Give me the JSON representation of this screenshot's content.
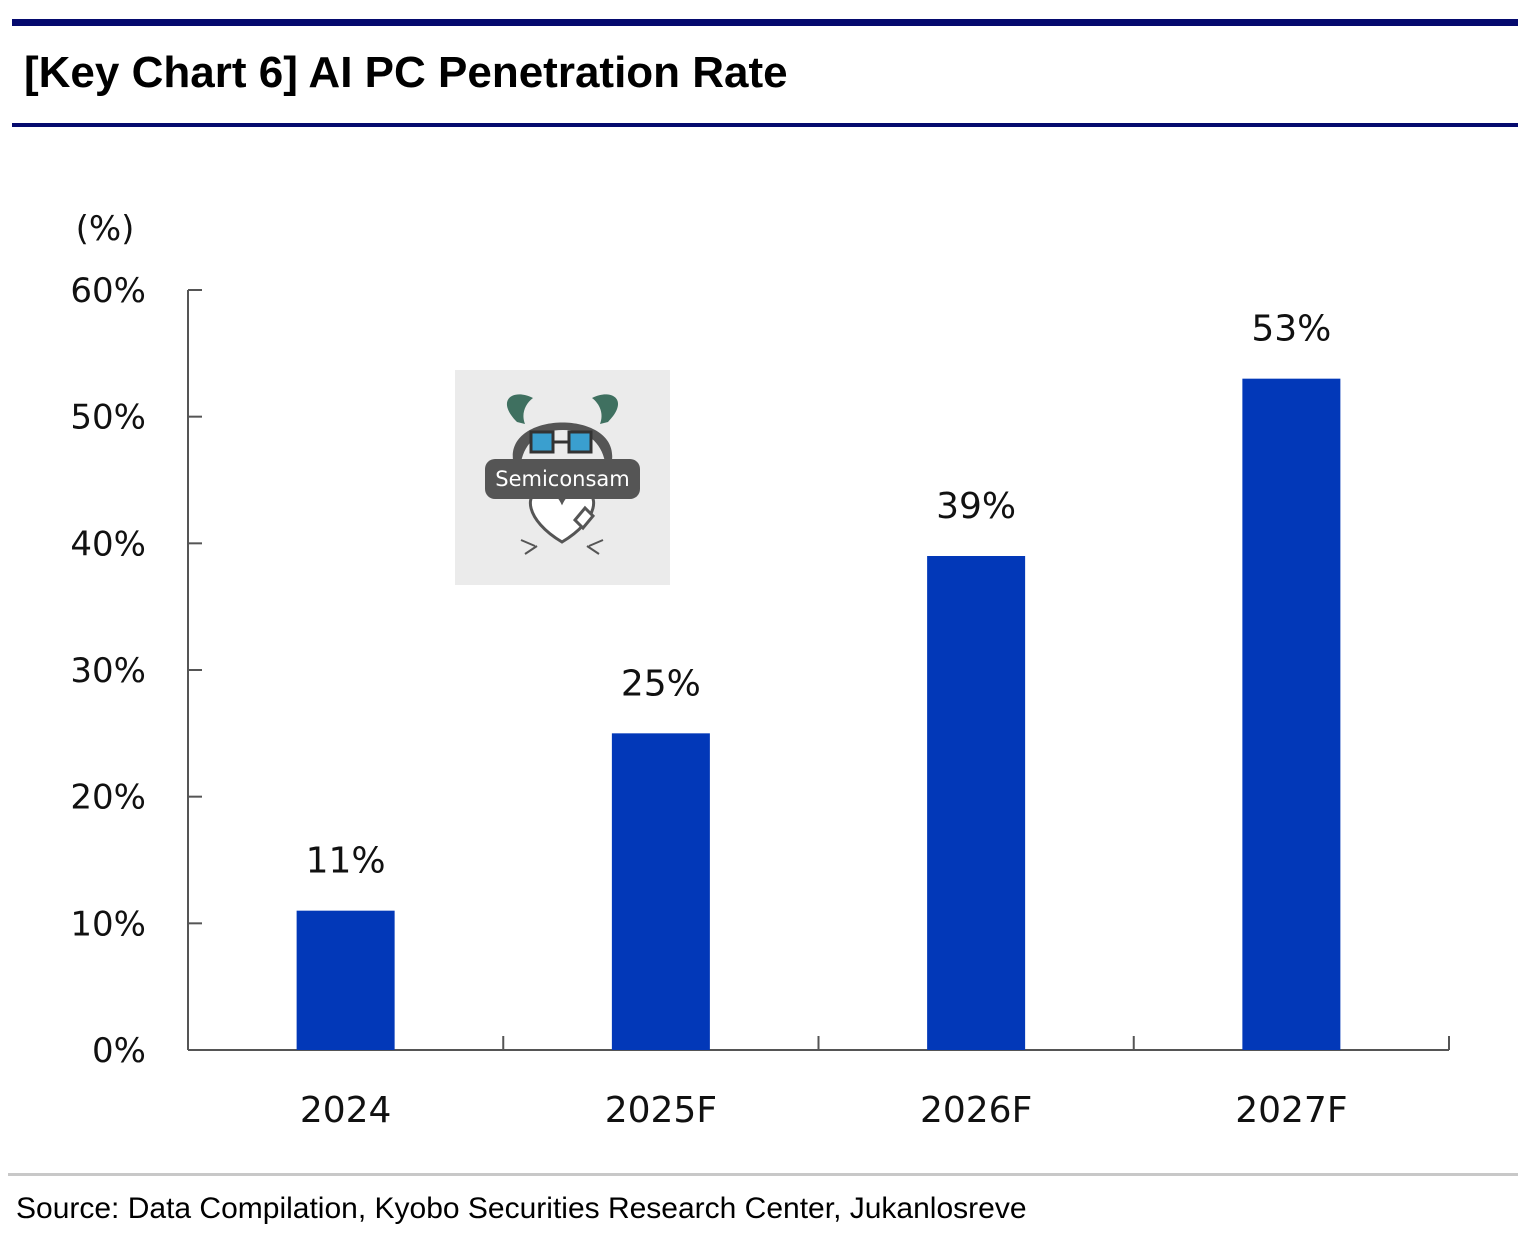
{
  "title": "[Key Chart 6] AI PC Penetration Rate",
  "source": "Source: Data Compilation, Kyobo Securities Research Center, Jukanlosreve",
  "watermark": {
    "label": "Semiconsam"
  },
  "colors": {
    "bar": "#0238b8",
    "rule": "#050a6e",
    "axis": "#555555"
  },
  "chart_data": {
    "type": "bar",
    "unit_label": "(%)",
    "categories": [
      "2024",
      "2025F",
      "2026F",
      "2027F"
    ],
    "values": [
      11,
      25,
      39,
      53
    ],
    "value_labels": [
      "11%",
      "25%",
      "39%",
      "53%"
    ],
    "yticks": [
      "0%",
      "10%",
      "20%",
      "30%",
      "40%",
      "50%",
      "60%"
    ],
    "ylim": [
      0,
      60
    ],
    "grid": false,
    "legend": "none"
  }
}
